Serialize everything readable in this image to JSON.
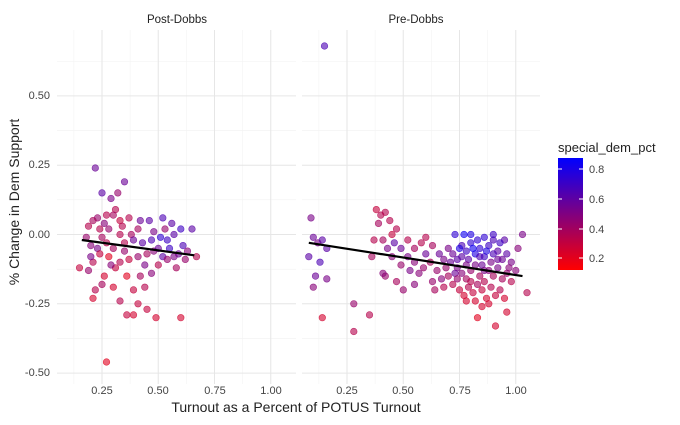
{
  "chart_data": {
    "type": "scatter",
    "title": "",
    "xlabel": "Turnout as a Percent of POTUS Turnout",
    "ylabel": "% Change in Dem Support",
    "xlim": [
      0.05,
      1.1
    ],
    "ylim": [
      -0.52,
      0.72
    ],
    "x_ticks": [
      {
        "value": 0.25,
        "label": "0.25"
      },
      {
        "value": 0.5,
        "label": "0.50"
      },
      {
        "value": 0.75,
        "label": "0.75"
      },
      {
        "value": 1.0,
        "label": "1.00"
      }
    ],
    "y_ticks": [
      {
        "value": 0.5,
        "label": "0.50"
      },
      {
        "value": 0.25,
        "label": "0.25"
      },
      {
        "value": 0.0,
        "label": "0.00"
      },
      {
        "value": -0.25,
        "label": "-0.25"
      },
      {
        "value": -0.5,
        "label": "-0.50"
      }
    ],
    "color_scale": {
      "variable": "special_dem_pct",
      "low_color": "#ff0000",
      "high_color": "#0000ff",
      "range": [
        0.05,
        0.9
      ],
      "ticks": [
        {
          "value": 0.2,
          "label": "0.2"
        },
        {
          "value": 0.4,
          "label": "0.4"
        },
        {
          "value": 0.6,
          "label": "0.6"
        },
        {
          "value": 0.8,
          "label": "0.8"
        }
      ]
    },
    "panels": [
      {
        "name": "Post-Dobbs",
        "trend_line": {
          "x": [
            0.16,
            0.66
          ],
          "y": [
            -0.02,
            -0.075
          ]
        },
        "points": [
          [
            0.22,
            0.24,
            0.55
          ],
          [
            0.25,
            0.15,
            0.6
          ],
          [
            0.29,
            0.13,
            0.5
          ],
          [
            0.32,
            0.15,
            0.4
          ],
          [
            0.35,
            0.19,
            0.55
          ],
          [
            0.31,
            0.09,
            0.3
          ],
          [
            0.23,
            0.06,
            0.4
          ],
          [
            0.27,
            0.07,
            0.3
          ],
          [
            0.3,
            0.07,
            0.35
          ],
          [
            0.33,
            0.05,
            0.25
          ],
          [
            0.26,
            0.04,
            0.45
          ],
          [
            0.21,
            0.05,
            0.35
          ],
          [
            0.19,
            0.03,
            0.3
          ],
          [
            0.24,
            0.02,
            0.3
          ],
          [
            0.28,
            0.02,
            0.4
          ],
          [
            0.34,
            0.03,
            0.3
          ],
          [
            0.37,
            0.06,
            0.3
          ],
          [
            0.42,
            0.05,
            0.55
          ],
          [
            0.46,
            0.05,
            0.6
          ],
          [
            0.52,
            0.06,
            0.65
          ],
          [
            0.56,
            0.04,
            0.6
          ],
          [
            0.6,
            0.02,
            0.7
          ],
          [
            0.65,
            0.02,
            0.6
          ],
          [
            0.41,
            0.02,
            0.35
          ],
          [
            0.48,
            0.01,
            0.5
          ],
          [
            0.38,
            0.0,
            0.35
          ],
          [
            0.33,
            0.0,
            0.3
          ],
          [
            0.25,
            -0.01,
            0.35
          ],
          [
            0.18,
            -0.01,
            0.4
          ],
          [
            0.2,
            -0.04,
            0.45
          ],
          [
            0.23,
            -0.05,
            0.5
          ],
          [
            0.27,
            -0.03,
            0.3
          ],
          [
            0.3,
            -0.05,
            0.35
          ],
          [
            0.35,
            -0.03,
            0.3
          ],
          [
            0.39,
            -0.02,
            0.55
          ],
          [
            0.43,
            -0.03,
            0.6
          ],
          [
            0.47,
            -0.02,
            0.65
          ],
          [
            0.51,
            -0.01,
            0.75
          ],
          [
            0.54,
            -0.02,
            0.7
          ],
          [
            0.57,
            0.0,
            0.6
          ],
          [
            0.61,
            -0.04,
            0.65
          ],
          [
            0.63,
            -0.06,
            0.45
          ],
          [
            0.67,
            -0.08,
            0.3
          ],
          [
            0.59,
            -0.07,
            0.55
          ],
          [
            0.55,
            -0.05,
            0.7
          ],
          [
            0.52,
            -0.08,
            0.6
          ],
          [
            0.48,
            -0.06,
            0.45
          ],
          [
            0.45,
            -0.07,
            0.35
          ],
          [
            0.41,
            -0.08,
            0.4
          ],
          [
            0.37,
            -0.09,
            0.25
          ],
          [
            0.33,
            -0.1,
            0.3
          ],
          [
            0.28,
            -0.08,
            0.15
          ],
          [
            0.24,
            -0.07,
            0.25
          ],
          [
            0.21,
            -0.1,
            0.3
          ],
          [
            0.15,
            -0.12,
            0.25
          ],
          [
            0.19,
            -0.13,
            0.4
          ],
          [
            0.26,
            -0.15,
            0.2
          ],
          [
            0.31,
            -0.12,
            0.25
          ],
          [
            0.36,
            -0.15,
            0.15
          ],
          [
            0.42,
            -0.15,
            0.35
          ],
          [
            0.47,
            -0.14,
            0.45
          ],
          [
            0.5,
            -0.11,
            0.3
          ],
          [
            0.54,
            -0.09,
            0.4
          ],
          [
            0.58,
            -0.12,
            0.35
          ],
          [
            0.44,
            -0.19,
            0.3
          ],
          [
            0.39,
            -0.2,
            0.25
          ],
          [
            0.3,
            -0.19,
            0.2
          ],
          [
            0.21,
            -0.23,
            0.2
          ],
          [
            0.25,
            -0.18,
            0.35
          ],
          [
            0.33,
            -0.24,
            0.3
          ],
          [
            0.36,
            -0.29,
            0.25
          ],
          [
            0.39,
            -0.29,
            0.2
          ],
          [
            0.41,
            -0.25,
            0.25
          ],
          [
            0.49,
            -0.3,
            0.2
          ],
          [
            0.6,
            -0.3,
            0.2
          ],
          [
            0.27,
            -0.46,
            0.15
          ],
          [
            0.45,
            -0.27,
            0.25
          ],
          [
            0.22,
            -0.2,
            0.3
          ],
          [
            0.2,
            -0.08,
            0.5
          ],
          [
            0.29,
            -0.11,
            0.45
          ],
          [
            0.35,
            -0.06,
            0.4
          ],
          [
            0.44,
            -0.11,
            0.5
          ],
          [
            0.5,
            -0.05,
            0.55
          ],
          [
            0.53,
            0.02,
            0.4
          ],
          [
            0.62,
            -0.09,
            0.4
          ],
          [
            0.57,
            -0.08,
            0.5
          ]
        ]
      },
      {
        "name": "Pre-Dobbs",
        "trend_line": {
          "x": [
            0.08,
            1.03
          ],
          "y": [
            -0.03,
            -0.15
          ]
        },
        "points": [
          [
            0.15,
            0.68,
            0.65
          ],
          [
            0.09,
            0.06,
            0.5
          ],
          [
            0.1,
            -0.01,
            0.55
          ],
          [
            0.12,
            -0.03,
            0.5
          ],
          [
            0.14,
            -0.02,
            0.6
          ],
          [
            0.16,
            -0.05,
            0.6
          ],
          [
            0.08,
            -0.08,
            0.6
          ],
          [
            0.13,
            -0.1,
            0.65
          ],
          [
            0.11,
            -0.15,
            0.55
          ],
          [
            0.16,
            -0.16,
            0.5
          ],
          [
            0.1,
            -0.19,
            0.45
          ],
          [
            0.14,
            -0.3,
            0.2
          ],
          [
            0.28,
            -0.25,
            0.4
          ],
          [
            0.28,
            -0.35,
            0.3
          ],
          [
            0.35,
            -0.29,
            0.3
          ],
          [
            0.38,
            0.09,
            0.25
          ],
          [
            0.4,
            0.07,
            0.3
          ],
          [
            0.42,
            0.08,
            0.3
          ],
          [
            0.39,
            0.04,
            0.35
          ],
          [
            0.44,
            0.05,
            0.3
          ],
          [
            0.47,
            0.02,
            0.3
          ],
          [
            0.45,
            0.0,
            0.25
          ],
          [
            0.41,
            -0.02,
            0.35
          ],
          [
            0.37,
            -0.02,
            0.3
          ],
          [
            0.36,
            -0.08,
            0.35
          ],
          [
            0.43,
            -0.05,
            0.5
          ],
          [
            0.46,
            -0.03,
            0.6
          ],
          [
            0.49,
            -0.05,
            0.55
          ],
          [
            0.52,
            -0.02,
            0.3
          ],
          [
            0.55,
            -0.05,
            0.35
          ],
          [
            0.58,
            -0.03,
            0.3
          ],
          [
            0.6,
            -0.01,
            0.3
          ],
          [
            0.63,
            -0.04,
            0.35
          ],
          [
            0.45,
            -0.08,
            0.45
          ],
          [
            0.49,
            -0.11,
            0.4
          ],
          [
            0.52,
            -0.08,
            0.5
          ],
          [
            0.55,
            -0.1,
            0.45
          ],
          [
            0.59,
            -0.12,
            0.4
          ],
          [
            0.62,
            -0.1,
            0.35
          ],
          [
            0.65,
            -0.13,
            0.4
          ],
          [
            0.68,
            -0.09,
            0.5
          ],
          [
            0.42,
            -0.15,
            0.4
          ],
          [
            0.47,
            -0.17,
            0.35
          ],
          [
            0.5,
            -0.2,
            0.4
          ],
          [
            0.55,
            -0.18,
            0.45
          ],
          [
            0.63,
            -0.17,
            0.4
          ],
          [
            0.67,
            -0.16,
            0.45
          ],
          [
            0.41,
            -0.14,
            0.45
          ],
          [
            0.7,
            -0.05,
            0.5
          ],
          [
            0.72,
            -0.07,
            0.55
          ],
          [
            0.74,
            -0.09,
            0.6
          ],
          [
            0.76,
            -0.04,
            0.65
          ],
          [
            0.78,
            -0.06,
            0.7
          ],
          [
            0.8,
            -0.03,
            0.75
          ],
          [
            0.82,
            -0.07,
            0.8
          ],
          [
            0.84,
            -0.05,
            0.75
          ],
          [
            0.86,
            -0.08,
            0.7
          ],
          [
            0.88,
            -0.04,
            0.7
          ],
          [
            0.9,
            -0.02,
            0.65
          ],
          [
            0.92,
            -0.06,
            0.6
          ],
          [
            0.94,
            -0.09,
            0.55
          ],
          [
            0.96,
            -0.07,
            0.6
          ],
          [
            0.98,
            -0.1,
            0.5
          ],
          [
            1.01,
            -0.05,
            0.45
          ],
          [
            1.03,
            0.0,
            0.5
          ],
          [
            0.95,
            -0.02,
            0.6
          ],
          [
            0.9,
            0.0,
            0.7
          ],
          [
            0.86,
            -0.01,
            0.75
          ],
          [
            0.8,
            0.0,
            0.8
          ],
          [
            0.77,
            0.0,
            0.85
          ],
          [
            0.73,
            0.0,
            0.75
          ],
          [
            0.71,
            -0.1,
            0.55
          ],
          [
            0.74,
            -0.12,
            0.5
          ],
          [
            0.76,
            -0.14,
            0.45
          ],
          [
            0.78,
            -0.16,
            0.35
          ],
          [
            0.8,
            -0.13,
            0.4
          ],
          [
            0.82,
            -0.11,
            0.5
          ],
          [
            0.84,
            -0.15,
            0.35
          ],
          [
            0.86,
            -0.17,
            0.3
          ],
          [
            0.88,
            -0.13,
            0.45
          ],
          [
            0.9,
            -0.15,
            0.35
          ],
          [
            0.92,
            -0.12,
            0.5
          ],
          [
            0.94,
            -0.16,
            0.35
          ],
          [
            0.96,
            -0.14,
            0.4
          ],
          [
            0.98,
            -0.17,
            0.3
          ],
          [
            1.0,
            -0.13,
            0.45
          ],
          [
            0.72,
            -0.18,
            0.3
          ],
          [
            0.75,
            -0.2,
            0.25
          ],
          [
            0.77,
            -0.22,
            0.2
          ],
          [
            0.79,
            -0.19,
            0.3
          ],
          [
            0.81,
            -0.21,
            0.25
          ],
          [
            0.83,
            -0.18,
            0.35
          ],
          [
            0.85,
            -0.2,
            0.25
          ],
          [
            0.87,
            -0.23,
            0.2
          ],
          [
            0.89,
            -0.19,
            0.3
          ],
          [
            0.91,
            -0.22,
            0.25
          ],
          [
            0.93,
            -0.2,
            0.3
          ],
          [
            0.95,
            -0.23,
            0.2
          ],
          [
            0.85,
            -0.26,
            0.2
          ],
          [
            0.83,
            -0.3,
            0.15
          ],
          [
            0.91,
            -0.33,
            0.2
          ],
          [
            0.96,
            -0.28,
            0.2
          ],
          [
            1.05,
            -0.21,
            0.3
          ],
          [
            0.73,
            -0.14,
            0.55
          ],
          [
            0.79,
            -0.09,
            0.6
          ],
          [
            0.85,
            -0.11,
            0.55
          ],
          [
            0.69,
            -0.12,
            0.4
          ],
          [
            0.66,
            -0.07,
            0.55
          ],
          [
            0.87,
            -0.06,
            0.8
          ],
          [
            0.81,
            -0.05,
            0.85
          ],
          [
            0.75,
            -0.05,
            0.8
          ],
          [
            0.83,
            -0.02,
            0.75
          ],
          [
            0.89,
            -0.1,
            0.5
          ],
          [
            0.7,
            -0.15,
            0.35
          ],
          [
            0.78,
            -0.11,
            0.5
          ],
          [
            0.93,
            -0.03,
            0.7
          ],
          [
            0.97,
            -0.12,
            0.45
          ],
          [
            0.8,
            -0.17,
            0.3
          ],
          [
            0.76,
            -0.08,
            0.6
          ],
          [
            0.84,
            -0.08,
            0.65
          ],
          [
            0.92,
            -0.09,
            0.55
          ],
          [
            0.82,
            -0.24,
            0.2
          ],
          [
            0.88,
            -0.25,
            0.2
          ],
          [
            0.78,
            -0.24,
            0.2
          ],
          [
            0.74,
            -0.16,
            0.4
          ],
          [
            0.86,
            -0.13,
            0.5
          ],
          [
            0.9,
            -0.07,
            0.65
          ],
          [
            0.68,
            -0.19,
            0.3
          ],
          [
            0.64,
            -0.2,
            0.35
          ],
          [
            0.57,
            -0.14,
            0.45
          ],
          [
            0.53,
            -0.13,
            0.5
          ],
          [
            0.6,
            -0.07,
            0.55
          ]
        ]
      }
    ]
  }
}
